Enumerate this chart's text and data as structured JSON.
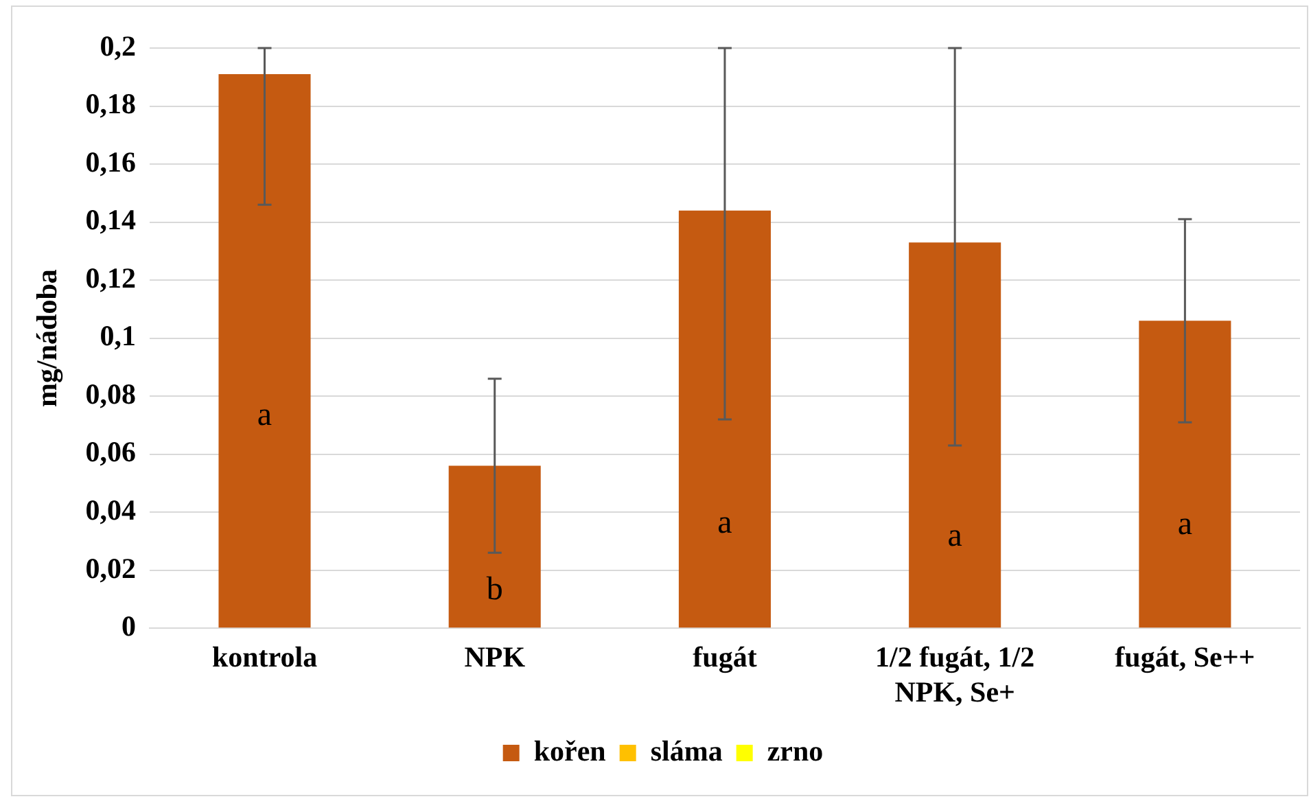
{
  "chart_data": {
    "type": "bar",
    "ylabel": "mg/nádoba",
    "categories": [
      "kontrola",
      "NPK",
      "fugát",
      "1/2 fugát, 1/2 NPK, Se+",
      "fugát, Se++"
    ],
    "series": [
      {
        "name": "kořen",
        "color": "#c55a11",
        "values": [
          0.191,
          0.056,
          0.144,
          0.133,
          0.106
        ],
        "errors": [
          [
            0.146,
            0.2
          ],
          [
            0.026,
            0.086
          ],
          [
            0.072,
            0.2
          ],
          [
            0.063,
            0.2
          ],
          [
            0.071,
            0.141
          ]
        ]
      },
      {
        "name": "sláma",
        "color": "#ffc000",
        "values": [
          null,
          null,
          null,
          null,
          null
        ]
      },
      {
        "name": "zrno",
        "color": "#ffff00",
        "values": [
          null,
          null,
          null,
          null,
          null
        ]
      }
    ],
    "stacked": true,
    "ylim": [
      0,
      0.2
    ],
    "yticks": [
      {
        "value": 0,
        "label": "0"
      },
      {
        "value": 0.02,
        "label": "0,02"
      },
      {
        "value": 0.04,
        "label": "0,04"
      },
      {
        "value": 0.06,
        "label": "0,06"
      },
      {
        "value": 0.08,
        "label": "0,08"
      },
      {
        "value": 0.1,
        "label": "0,1"
      },
      {
        "value": 0.12,
        "label": "0,12"
      },
      {
        "value": 0.14,
        "label": "0,14"
      },
      {
        "value": 0.16,
        "label": "0,16"
      },
      {
        "value": 0.18,
        "label": "0,18"
      },
      {
        "value": 0.2,
        "label": "0,2"
      }
    ],
    "grid": "y",
    "legend": "bottom",
    "annotations": [
      "a",
      "b",
      "a",
      "a",
      "a"
    ]
  }
}
